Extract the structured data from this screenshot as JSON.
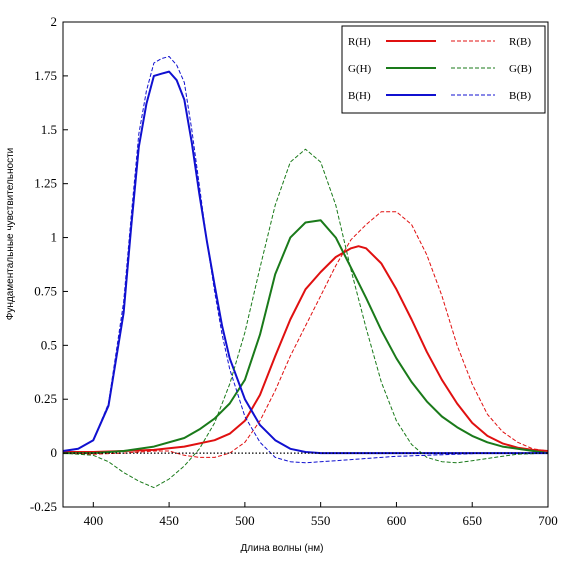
{
  "chart_data": {
    "type": "line",
    "title": "",
    "xlabel": "Длина волны (нм)",
    "ylabel": "Фундаментальные чувствительности",
    "xlim": [
      380,
      700
    ],
    "ylim": [
      -0.25,
      2
    ],
    "xticks": [
      400,
      450,
      500,
      550,
      600,
      650,
      700
    ],
    "xtick_labels": [
      "400",
      "450",
      "500",
      "550",
      "600",
      "650",
      "700"
    ],
    "yticks": [
      -0.25,
      0,
      0.25,
      0.5,
      0.75,
      1,
      1.25,
      1.5,
      1.75,
      2
    ],
    "ytick_labels": [
      "-0.25",
      "0",
      "0.25",
      "0.5",
      "0.75",
      "1",
      "1.25",
      "1.5",
      "1.75",
      "2"
    ],
    "grid": false,
    "legend_position": "top-right",
    "zero_line_style": "dotted",
    "series": [
      {
        "name": "R(H)",
        "color": "#e01010",
        "dash": "solid",
        "x": [
          380,
          400,
          420,
          440,
          460,
          480,
          490,
          500,
          510,
          520,
          530,
          540,
          550,
          560,
          570,
          575,
          580,
          590,
          600,
          610,
          620,
          630,
          640,
          650,
          660,
          670,
          680,
          690,
          700
        ],
        "y": [
          0.005,
          0.005,
          0.01,
          0.015,
          0.03,
          0.06,
          0.09,
          0.15,
          0.27,
          0.45,
          0.62,
          0.76,
          0.84,
          0.91,
          0.95,
          0.96,
          0.95,
          0.88,
          0.76,
          0.62,
          0.47,
          0.34,
          0.23,
          0.14,
          0.08,
          0.045,
          0.025,
          0.015,
          0.01
        ]
      },
      {
        "name": "G(H)",
        "color": "#1a7a1a",
        "dash": "solid",
        "x": [
          380,
          400,
          420,
          440,
          460,
          470,
          480,
          490,
          500,
          510,
          520,
          530,
          540,
          550,
          560,
          570,
          580,
          590,
          600,
          610,
          620,
          630,
          640,
          650,
          660,
          670,
          680,
          700
        ],
        "y": [
          0.0,
          0.0,
          0.01,
          0.03,
          0.07,
          0.11,
          0.16,
          0.23,
          0.34,
          0.55,
          0.83,
          1.0,
          1.07,
          1.08,
          1.0,
          0.86,
          0.72,
          0.57,
          0.44,
          0.33,
          0.24,
          0.17,
          0.12,
          0.08,
          0.05,
          0.03,
          0.02,
          0.0
        ]
      },
      {
        "name": "B(H)",
        "color": "#1010d0",
        "dash": "solid",
        "x": [
          380,
          390,
          400,
          410,
          420,
          425,
          430,
          435,
          440,
          445,
          450,
          455,
          460,
          465,
          470,
          475,
          480,
          485,
          490,
          500,
          510,
          520,
          530,
          540,
          550,
          560,
          580,
          600,
          620,
          640,
          660,
          680,
          700
        ],
        "y": [
          0.01,
          0.02,
          0.06,
          0.22,
          0.65,
          1.05,
          1.42,
          1.62,
          1.75,
          1.76,
          1.77,
          1.73,
          1.64,
          1.44,
          1.2,
          0.98,
          0.78,
          0.59,
          0.44,
          0.25,
          0.13,
          0.06,
          0.02,
          0.005,
          0.0,
          0.0,
          0.0,
          0.0,
          0.0,
          0.0,
          0.0,
          0.0,
          0.0
        ]
      },
      {
        "name": "R(B)",
        "color": "#e01010",
        "dash": "dashed",
        "x": [
          380,
          400,
          420,
          440,
          450,
          460,
          470,
          480,
          490,
          500,
          510,
          520,
          530,
          540,
          550,
          560,
          570,
          580,
          590,
          600,
          610,
          620,
          630,
          640,
          650,
          660,
          670,
          680,
          690,
          700
        ],
        "y": [
          0.0,
          -0.005,
          0.0,
          0.01,
          0.01,
          -0.01,
          -0.02,
          -0.02,
          0.0,
          0.05,
          0.15,
          0.29,
          0.45,
          0.59,
          0.73,
          0.87,
          0.99,
          1.06,
          1.12,
          1.12,
          1.06,
          0.92,
          0.73,
          0.5,
          0.32,
          0.18,
          0.1,
          0.05,
          0.02,
          0.01
        ]
      },
      {
        "name": "G(B)",
        "color": "#1a7a1a",
        "dash": "dashed",
        "x": [
          380,
          400,
          410,
          420,
          430,
          440,
          450,
          460,
          470,
          480,
          490,
          500,
          510,
          520,
          530,
          540,
          550,
          560,
          570,
          580,
          590,
          600,
          610,
          620,
          630,
          640,
          650,
          660,
          670,
          680,
          700
        ],
        "y": [
          0.0,
          -0.01,
          -0.04,
          -0.09,
          -0.13,
          -0.16,
          -0.12,
          -0.06,
          0.02,
          0.14,
          0.32,
          0.56,
          0.86,
          1.15,
          1.35,
          1.41,
          1.35,
          1.15,
          0.85,
          0.58,
          0.33,
          0.15,
          0.04,
          -0.02,
          -0.04,
          -0.045,
          -0.035,
          -0.025,
          -0.015,
          -0.005,
          0.0
        ]
      },
      {
        "name": "B(B)",
        "color": "#1010d0",
        "dash": "dashed",
        "x": [
          380,
          390,
          400,
          410,
          420,
          425,
          430,
          435,
          440,
          445,
          450,
          455,
          460,
          465,
          470,
          475,
          480,
          485,
          490,
          500,
          510,
          520,
          530,
          540,
          550,
          560,
          570,
          580,
          600,
          620,
          640,
          660,
          680,
          700
        ],
        "y": [
          0.01,
          0.02,
          0.06,
          0.23,
          0.7,
          1.1,
          1.48,
          1.68,
          1.81,
          1.83,
          1.84,
          1.8,
          1.72,
          1.5,
          1.24,
          0.98,
          0.75,
          0.55,
          0.39,
          0.17,
          0.05,
          -0.02,
          -0.04,
          -0.045,
          -0.04,
          -0.035,
          -0.03,
          -0.025,
          -0.015,
          -0.01,
          -0.005,
          0.0,
          0.0,
          0.0
        ]
      }
    ]
  }
}
